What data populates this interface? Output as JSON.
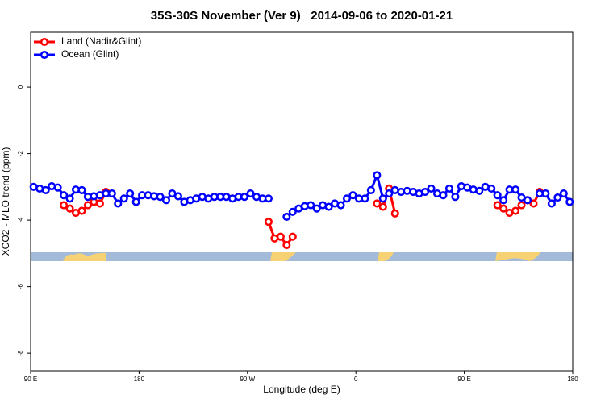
{
  "chart_data": {
    "type": "line",
    "title": "35S-30S November (Ver 9)   2014-09-06 to 2020-01-21",
    "x_label": "Longitude (deg E)",
    "y_label": "XCO2 - MLO trend (ppm)",
    "xlim": [
      90,
      540
    ],
    "xticks": [
      {
        "value": 90,
        "label": "90 E"
      },
      180,
      {
        "value": 270,
        "label": "90 W"
      },
      {
        "value": 360,
        "label": "0"
      },
      {
        "value": 450,
        "label": "90 E"
      },
      {
        "value": 540,
        "label": "180"
      }
    ],
    "ylim": [
      -8.53,
      1.65
    ],
    "yticks": [
      0,
      -2,
      -4,
      -6,
      -8
    ],
    "legend": "top-left",
    "series": [
      {
        "name": "Land (Nadir&Glint)",
        "color": "#ff0000",
        "x": [
          117.5,
          122.5,
          127.5,
          132.5,
          137.5,
          142.5,
          147.5,
          152.5,
          157.5,
          287.5,
          292.5,
          297.5,
          302.5,
          307.5,
          312.5,
          377.5,
          382.5,
          387.5,
          392.5,
          397.5,
          477.5,
          482.5,
          487.5,
          492.5,
          497.5,
          502.5,
          507.5,
          512.5
        ],
        "values": [
          -3.55,
          -3.65,
          -3.78,
          -3.72,
          -3.55,
          -3.45,
          -3.5,
          -3.15,
          null,
          -4.05,
          -4.55,
          -4.5,
          -4.75,
          -4.5,
          null,
          -3.5,
          -3.6,
          -3.05,
          -3.8,
          null,
          -3.55,
          -3.65,
          -3.78,
          -3.72,
          -3.55,
          -3.4,
          -3.5,
          -3.15
        ]
      },
      {
        "name": "Ocean (Glint)",
        "color": "#0000ff",
        "x": [
          92.5,
          97.5,
          102.5,
          107.5,
          112.5,
          117.5,
          122.5,
          127.5,
          132.5,
          137.5,
          142.5,
          147.5,
          152.5,
          157.5,
          162.5,
          167.5,
          172.5,
          177.5,
          182.5,
          187.5,
          192.5,
          197.5,
          202.5,
          207.5,
          212.5,
          217.5,
          222.5,
          227.5,
          232.5,
          237.5,
          242.5,
          247.5,
          252.5,
          257.5,
          262.5,
          267.5,
          272.5,
          277.5,
          282.5,
          287.5,
          292.5,
          297.5,
          302.5,
          307.5,
          312.5,
          317.5,
          322.5,
          327.5,
          332.5,
          337.5,
          342.5,
          347.5,
          352.5,
          357.5,
          362.5,
          367.5,
          372.5,
          377.5,
          382.5,
          387.5,
          392.5,
          397.5,
          402.5,
          407.5,
          412.5,
          417.5,
          422.5,
          427.5,
          432.5,
          437.5,
          442.5,
          447.5,
          452.5,
          457.5,
          462.5,
          467.5,
          472.5,
          477.5,
          482.5,
          487.5,
          492.5,
          497.5,
          502.5,
          507.5,
          512.5,
          517.5,
          522.5,
          527.5,
          532.5,
          537.5
        ],
        "values": [
          -3.0,
          -3.05,
          -3.1,
          -2.98,
          -3.02,
          -3.25,
          -3.35,
          -3.08,
          -3.1,
          -3.3,
          -3.28,
          -3.25,
          -3.2,
          -3.2,
          -3.5,
          -3.35,
          -3.2,
          -3.45,
          -3.25,
          -3.25,
          -3.28,
          -3.3,
          -3.4,
          -3.2,
          -3.28,
          -3.45,
          -3.4,
          -3.35,
          -3.3,
          -3.35,
          -3.3,
          -3.3,
          -3.3,
          -3.35,
          -3.3,
          -3.3,
          -3.2,
          -3.3,
          -3.35,
          -3.35,
          null,
          null,
          -3.9,
          -3.75,
          -3.65,
          -3.58,
          -3.55,
          -3.65,
          -3.55,
          -3.6,
          -3.5,
          -3.55,
          -3.35,
          -3.25,
          -3.35,
          -3.35,
          -3.1,
          -2.65,
          -3.35,
          -3.2,
          -3.1,
          -3.15,
          -3.12,
          -3.15,
          -3.2,
          -3.15,
          -3.05,
          -3.2,
          -3.25,
          -3.05,
          -3.3,
          -2.98,
          -3.02,
          -3.08,
          -3.12,
          -3.0,
          -3.05,
          -3.25,
          -3.4,
          -3.08,
          -3.08,
          -3.32,
          -3.4,
          null,
          -3.2,
          -3.2,
          -3.5,
          -3.32,
          -3.2,
          -3.45
        ]
      }
    ]
  }
}
